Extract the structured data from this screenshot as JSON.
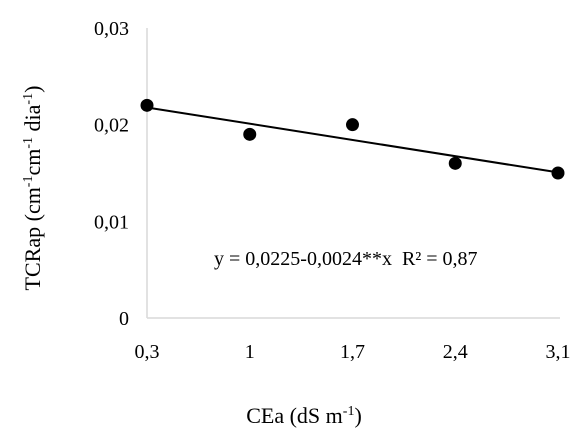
{
  "chart_data": {
    "type": "scatter",
    "x_categories": [
      "0,3",
      "1",
      "1,7",
      "2,4",
      "3,1"
    ],
    "x": [
      0.3,
      1.0,
      1.7,
      2.4,
      3.1
    ],
    "y": [
      0.022,
      0.019,
      0.02,
      0.016,
      0.015
    ],
    "trendline": {
      "intercept": 0.0225,
      "slope": -0.0024,
      "equation": "y = 0,0225-0,0024**x  R² = 0,87"
    },
    "y_ticks": [
      "0",
      "0,01",
      "0,02",
      "0,03"
    ],
    "ylim": [
      0,
      0.03
    ],
    "xlim": [
      0.3,
      3.1
    ],
    "xlabel": {
      "main": "CEa (dS m",
      "sup": "-1",
      "end": ")"
    },
    "ylabel": {
      "p1": "TCRap (cm",
      "s1": "-1",
      "p2": "cm",
      "s2": "-1",
      "p3": " dia",
      "s3": "-1",
      "p4": ")"
    },
    "grid": false,
    "legend": "none",
    "colors": {
      "marker": "#000000",
      "line": "#000000",
      "axis": "#d9d9d9"
    }
  }
}
